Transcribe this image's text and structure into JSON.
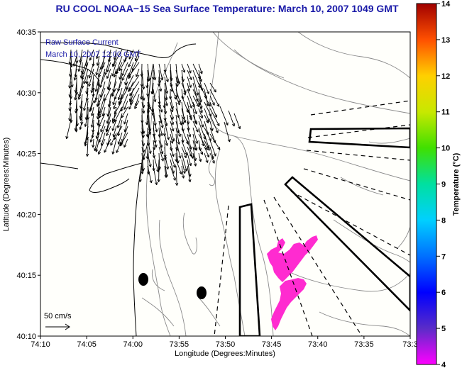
{
  "title": "RU COOL  NOAA−15  Sea Surface Temperature:  March 10, 2007 1049 GMT",
  "legend": {
    "line1": "Raw Surface Current",
    "line2": "March 10, 2007 12:00 GMT",
    "scale_label": "50 cm/s"
  },
  "axes": {
    "xlabel": "Longitude (Degrees:Minutes)",
    "ylabel": "Latitude (Degrees:Minutes)",
    "xticks": [
      "74:10",
      "74:05",
      "74:00",
      "73:55",
      "73:50",
      "73:45",
      "73:40",
      "73:35",
      "73:3"
    ],
    "yticks": [
      "40:35",
      "40:30",
      "40:25",
      "40:20",
      "40:15",
      "40:10"
    ]
  },
  "colorbar": {
    "label": "Temperature (°C)",
    "ticks": [
      "14",
      "13",
      "12",
      "11",
      "10",
      "9",
      "8",
      "7",
      "6",
      "5",
      "4"
    ],
    "min": 4,
    "max": 14
  },
  "colors": {
    "title": "#1a1aa8",
    "sst_patch": "#ff2bd0",
    "coast": "#000000",
    "bathymetry": "#8a8a8a"
  }
}
